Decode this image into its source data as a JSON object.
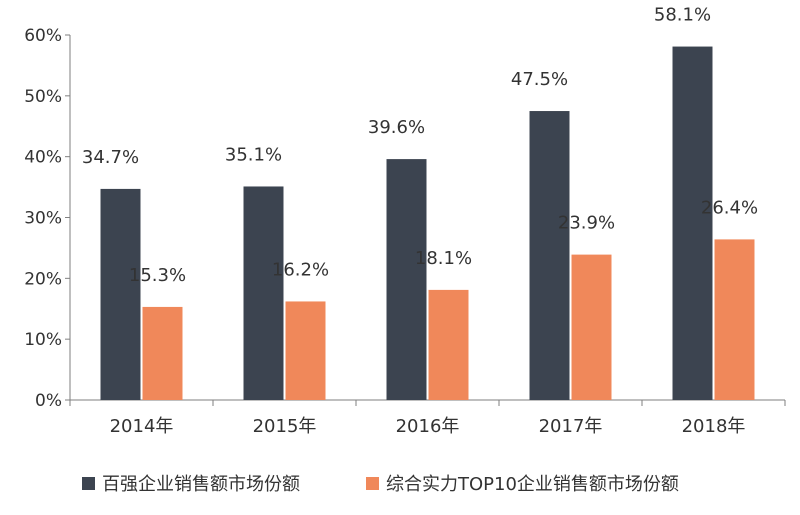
{
  "chart_data": {
    "type": "bar",
    "categories": [
      "2014年",
      "2015年",
      "2016年",
      "2017年",
      "2018年"
    ],
    "series": [
      {
        "name": "百强企业销售额市场份额",
        "values": [
          34.7,
          35.1,
          39.6,
          47.5,
          58.1
        ],
        "labels": [
          "34.7%",
          "35.1%",
          "39.6%",
          "47.5%",
          "58.1%"
        ],
        "color": "#3c4450"
      },
      {
        "name": "综合实力TOP10企业销售额市场份额",
        "values": [
          15.3,
          16.2,
          18.1,
          23.9,
          26.4
        ],
        "labels": [
          "15.3%",
          "16.2%",
          "18.1%",
          "23.9%",
          "26.4%"
        ],
        "color": "#f0885a"
      }
    ],
    "yticks": [
      "0%",
      "10%",
      "20%",
      "30%",
      "40%",
      "50%",
      "60%"
    ],
    "ylim": [
      0,
      60
    ],
    "unit": "%",
    "grid": false,
    "legend_position": "bottom"
  }
}
